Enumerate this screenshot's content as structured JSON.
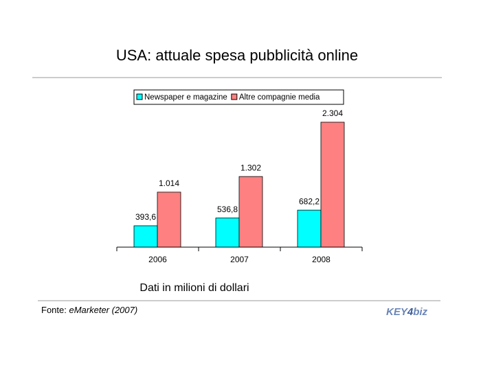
{
  "chart_data": {
    "type": "bar",
    "title": "USA: attuale spesa pubblicità online",
    "categories": [
      "2006",
      "2007",
      "2008"
    ],
    "series": [
      {
        "name": "Newspaper e magazine",
        "color": "#00ffff",
        "values": [
          393.6,
          536.8,
          682.2
        ],
        "value_labels": [
          "393,6",
          "536,8",
          "682,2"
        ]
      },
      {
        "name": "Altre compagnie media",
        "color": "#ff8080",
        "values": [
          1014,
          1302,
          2304
        ],
        "value_labels": [
          "1.014",
          "1.302",
          "2.304"
        ]
      }
    ],
    "subtitle": "Dati in milioni di dollari",
    "source_label": "Fonte:",
    "source": "eMarketer (2007)",
    "logo": {
      "key": "KEY",
      "four": "4",
      "biz": "biz"
    },
    "legend": "top"
  }
}
